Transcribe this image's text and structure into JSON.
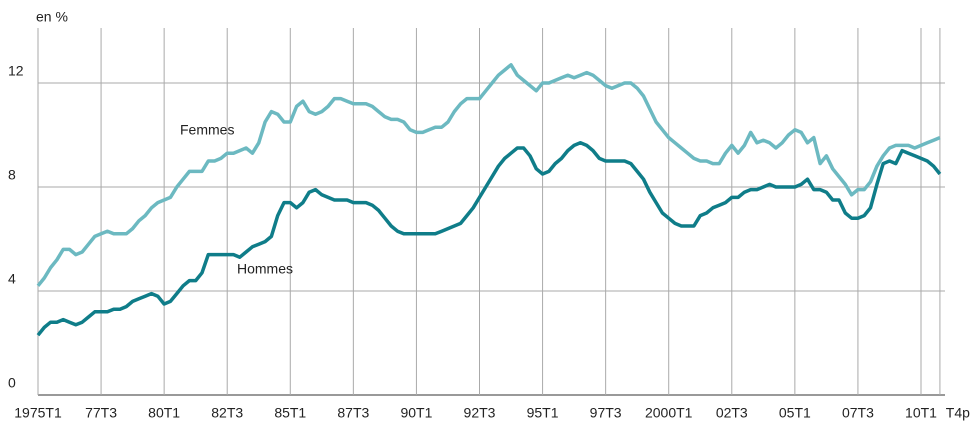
{
  "chart_data": {
    "type": "line",
    "y_label": "en %",
    "categories": [
      "1975T1",
      null,
      null,
      null,
      null,
      null,
      null,
      null,
      null,
      null,
      "77T3",
      null,
      null,
      null,
      null,
      null,
      null,
      null,
      null,
      null,
      "80T1",
      null,
      null,
      null,
      null,
      null,
      null,
      null,
      null,
      null,
      "82T3",
      null,
      null,
      null,
      null,
      null,
      null,
      null,
      null,
      null,
      "85T1",
      null,
      null,
      null,
      null,
      null,
      null,
      null,
      null,
      null,
      "87T3",
      null,
      null,
      null,
      null,
      null,
      null,
      null,
      null,
      null,
      "90T1",
      null,
      null,
      null,
      null,
      null,
      null,
      null,
      null,
      null,
      "92T3",
      null,
      null,
      null,
      null,
      null,
      null,
      null,
      null,
      null,
      "95T1",
      null,
      null,
      null,
      null,
      null,
      null,
      null,
      null,
      null,
      "97T3",
      null,
      null,
      null,
      null,
      null,
      null,
      null,
      null,
      null,
      "2000T1",
      null,
      null,
      null,
      null,
      null,
      null,
      null,
      null,
      null,
      "02T3",
      null,
      null,
      null,
      null,
      null,
      null,
      null,
      null,
      null,
      "05T1",
      null,
      null,
      null,
      null,
      null,
      null,
      null,
      null,
      null,
      "07T3",
      null,
      null,
      null,
      null,
      null,
      null,
      null,
      null,
      null,
      "10T1",
      null,
      null,
      "T4p"
    ],
    "series": [
      {
        "name": "Femmes",
        "color": "#6cb9c1",
        "values": [
          4.2,
          4.5,
          4.9,
          5.2,
          5.6,
          5.6,
          5.4,
          5.5,
          5.8,
          6.1,
          6.2,
          6.3,
          6.2,
          6.2,
          6.2,
          6.4,
          6.7,
          6.9,
          7.2,
          7.4,
          7.5,
          7.6,
          8.0,
          8.3,
          8.6,
          8.6,
          8.6,
          9.0,
          9.0,
          9.1,
          9.3,
          9.3,
          9.4,
          9.5,
          9.3,
          9.7,
          10.5,
          10.9,
          10.8,
          10.5,
          10.5,
          11.1,
          11.3,
          10.9,
          10.8,
          10.9,
          11.1,
          11.4,
          11.4,
          11.3,
          11.2,
          11.2,
          11.2,
          11.1,
          10.9,
          10.7,
          10.6,
          10.6,
          10.5,
          10.2,
          10.1,
          10.1,
          10.2,
          10.3,
          10.3,
          10.5,
          10.9,
          11.2,
          11.4,
          11.4,
          11.4,
          11.7,
          12.0,
          12.3,
          12.5,
          12.7,
          12.3,
          12.1,
          11.9,
          11.7,
          12.0,
          12.0,
          12.1,
          12.2,
          12.3,
          12.2,
          12.3,
          12.4,
          12.3,
          12.1,
          11.9,
          11.8,
          11.9,
          12.0,
          12.0,
          11.8,
          11.5,
          11.0,
          10.5,
          10.2,
          9.9,
          9.7,
          9.5,
          9.3,
          9.1,
          9.0,
          9.0,
          8.9,
          8.9,
          9.3,
          9.6,
          9.3,
          9.6,
          10.1,
          9.7,
          9.8,
          9.7,
          9.5,
          9.7,
          10.0,
          10.2,
          10.1,
          9.7,
          9.9,
          8.9,
          9.2,
          8.7,
          8.4,
          8.1,
          7.7,
          7.9,
          7.9,
          8.2,
          8.8,
          9.2,
          9.5,
          9.6,
          9.6,
          9.6,
          9.5,
          9.6,
          9.7,
          9.8,
          9.9
        ]
      },
      {
        "name": "Hommes",
        "color": "#0f7d89",
        "values": [
          2.3,
          2.6,
          2.8,
          2.8,
          2.9,
          2.8,
          2.7,
          2.8,
          3.0,
          3.2,
          3.2,
          3.2,
          3.3,
          3.3,
          3.4,
          3.6,
          3.7,
          3.8,
          3.9,
          3.8,
          3.5,
          3.6,
          3.9,
          4.2,
          4.4,
          4.4,
          4.7,
          5.4,
          5.4,
          5.4,
          5.4,
          5.4,
          5.3,
          5.5,
          5.7,
          5.8,
          5.9,
          6.1,
          6.9,
          7.4,
          7.4,
          7.2,
          7.4,
          7.8,
          7.9,
          7.7,
          7.6,
          7.5,
          7.5,
          7.5,
          7.4,
          7.4,
          7.4,
          7.3,
          7.1,
          6.8,
          6.5,
          6.3,
          6.2,
          6.2,
          6.2,
          6.2,
          6.2,
          6.2,
          6.3,
          6.4,
          6.5,
          6.6,
          6.9,
          7.2,
          7.6,
          8.0,
          8.4,
          8.8,
          9.1,
          9.3,
          9.5,
          9.5,
          9.2,
          8.7,
          8.5,
          8.6,
          8.9,
          9.1,
          9.4,
          9.6,
          9.7,
          9.6,
          9.4,
          9.1,
          9.0,
          9.0,
          9.0,
          9.0,
          8.9,
          8.6,
          8.3,
          7.8,
          7.4,
          7.0,
          6.8,
          6.6,
          6.5,
          6.5,
          6.5,
          6.9,
          7.0,
          7.2,
          7.3,
          7.4,
          7.6,
          7.6,
          7.8,
          7.9,
          7.9,
          8.0,
          8.1,
          8.0,
          8.0,
          8.0,
          8.0,
          8.1,
          8.3,
          7.9,
          7.9,
          7.8,
          7.5,
          7.5,
          7.0,
          6.8,
          6.8,
          6.9,
          7.2,
          8.1,
          8.9,
          9.0,
          8.9,
          9.4,
          9.3,
          9.2,
          9.1,
          9.0,
          8.8,
          8.5
        ]
      }
    ],
    "ylim": [
      0,
      14
    ],
    "yticks": [
      0,
      4,
      8,
      12
    ],
    "grid": true
  }
}
